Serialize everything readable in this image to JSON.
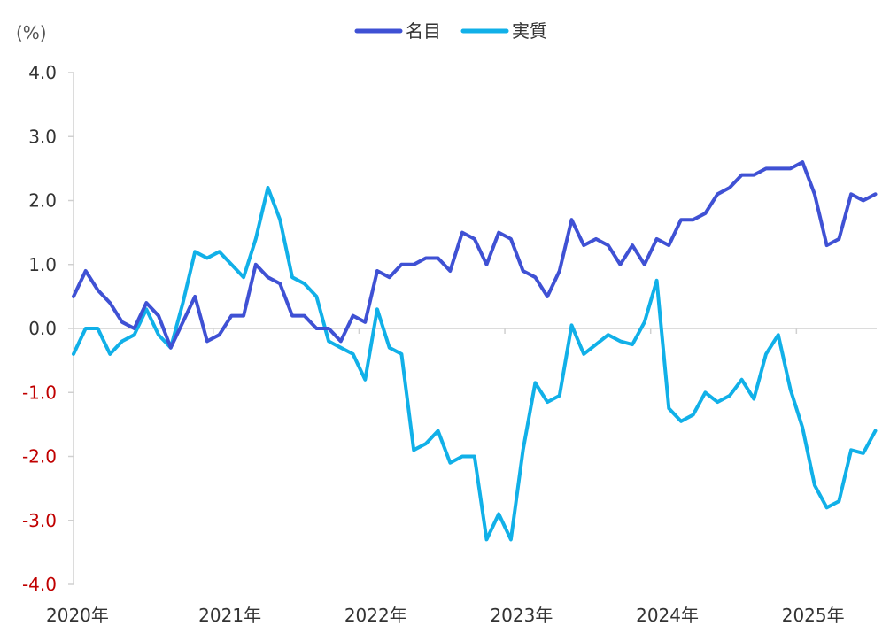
{
  "chart_data": {
    "type": "line",
    "unit_label": "(%)",
    "ylim": [
      -4.0,
      4.0
    ],
    "yticks": [
      {
        "value": 4,
        "label": "4.0"
      },
      {
        "value": 3,
        "label": "3.0"
      },
      {
        "value": 2,
        "label": "2.0"
      },
      {
        "value": 1,
        "label": "1.0"
      },
      {
        "value": 0,
        "label": "0.0"
      },
      {
        "value": -1,
        "label": "-1.0"
      },
      {
        "value": -2,
        "label": "-2.0"
      },
      {
        "value": -3,
        "label": "-3.0"
      },
      {
        "value": -4,
        "label": "-4.0"
      }
    ],
    "xlim": [
      "2020-01",
      "2025-06"
    ],
    "xticks": [
      {
        "month": "2020-01",
        "label": "2020年"
      },
      {
        "month": "2021-01",
        "label": "2021年"
      },
      {
        "month": "2022-01",
        "label": "2022年"
      },
      {
        "month": "2023-01",
        "label": "2023年"
      },
      {
        "month": "2024-01",
        "label": "2024年"
      },
      {
        "month": "2025-01",
        "label": "2025年"
      }
    ],
    "negative_tick_color": "#c00000",
    "legend_position": "top-center",
    "grid": false,
    "series": [
      {
        "name": "名目",
        "color": "#3f51d4",
        "start": "2020-01",
        "values": [
          0.5,
          0.9,
          0.6,
          0.4,
          0.1,
          0.0,
          0.4,
          0.2,
          -0.3,
          0.1,
          0.5,
          -0.2,
          -0.1,
          0.2,
          0.2,
          1.0,
          0.8,
          0.7,
          0.2,
          0.2,
          0.0,
          0.0,
          -0.2,
          0.2,
          0.1,
          0.9,
          0.8,
          1.0,
          1.0,
          1.1,
          1.1,
          0.9,
          1.5,
          1.4,
          1.0,
          1.5,
          1.4,
          0.9,
          0.8,
          0.5,
          0.9,
          1.7,
          1.3,
          1.4,
          1.3,
          1.0,
          1.3,
          1.0,
          1.4,
          1.3,
          1.7,
          1.7,
          1.8,
          2.1,
          2.2,
          2.4,
          2.4,
          2.5,
          2.5,
          2.5,
          2.6,
          2.1,
          1.3,
          1.4,
          2.1,
          2.0,
          2.1
        ]
      },
      {
        "name": "実質",
        "color": "#11b0e8",
        "start": "2020-01",
        "values": [
          -0.4,
          0.0,
          0.0,
          -0.4,
          -0.2,
          -0.1,
          0.3,
          -0.1,
          -0.3,
          0.4,
          1.2,
          1.1,
          1.2,
          1.0,
          0.8,
          1.4,
          2.2,
          1.7,
          0.8,
          0.7,
          0.5,
          -0.2,
          -0.3,
          -0.4,
          -0.8,
          0.3,
          -0.3,
          -0.4,
          -1.9,
          -1.8,
          -1.6,
          -2.1,
          -2.0,
          -2.0,
          -3.3,
          -2.9,
          -3.3,
          -1.9,
          -0.85,
          -1.15,
          -1.05,
          0.05,
          -0.4,
          -0.25,
          -0.1,
          -0.2,
          -0.25,
          0.1,
          0.75,
          -1.25,
          -1.45,
          -1.35,
          -1.0,
          -1.15,
          -1.05,
          -0.8,
          -1.1,
          -0.4,
          -0.1,
          -0.95,
          -1.55,
          -2.45,
          -2.8,
          -2.7,
          -1.9,
          -1.95,
          -1.6
        ]
      }
    ]
  }
}
